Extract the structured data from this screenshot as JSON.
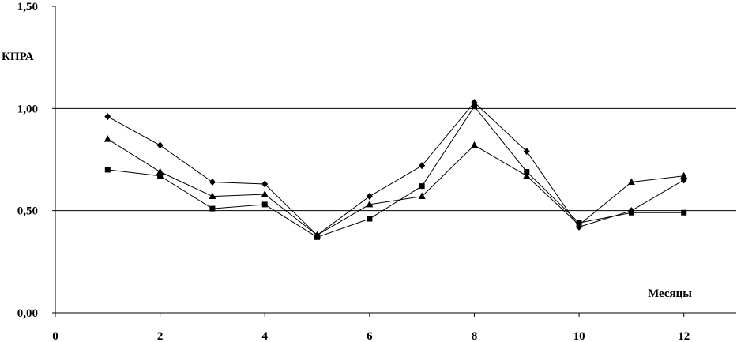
{
  "chart_data": {
    "type": "line",
    "title": "",
    "xlabel": "Месяцы",
    "ylabel": "КПРА",
    "xlim": [
      0,
      13
    ],
    "ylim": [
      0,
      1.5
    ],
    "x_ticks": [
      0,
      2,
      4,
      6,
      8,
      10,
      12
    ],
    "x_tick_labels": [
      "0",
      "2",
      "4",
      "6",
      "8",
      "10",
      "12"
    ],
    "y_ticks": [
      0,
      0.5,
      1.0,
      1.5
    ],
    "y_tick_labels": [
      "0,00",
      "0,50",
      "1,00",
      "1,50"
    ],
    "gridlines_y": [
      0.5,
      1.0
    ],
    "legend": "none",
    "x": [
      1,
      2,
      3,
      4,
      5,
      6,
      7,
      8,
      9,
      10,
      11,
      12
    ],
    "series": [
      {
        "marker": "diamond",
        "values": [
          0.96,
          0.82,
          0.64,
          0.63,
          0.38,
          0.57,
          0.72,
          1.03,
          0.79,
          0.42,
          0.5,
          0.65
        ]
      },
      {
        "marker": "square",
        "values": [
          0.7,
          0.67,
          0.51,
          0.53,
          0.37,
          0.46,
          0.62,
          1.01,
          0.69,
          0.44,
          0.49,
          0.49
        ]
      },
      {
        "marker": "triangle",
        "values": [
          0.85,
          0.69,
          0.57,
          0.58,
          0.38,
          0.53,
          0.57,
          0.82,
          0.67,
          0.43,
          0.64,
          0.67
        ]
      }
    ],
    "colors": {
      "line": "#000000",
      "grid": "#000000",
      "background": "#ffffff"
    }
  }
}
